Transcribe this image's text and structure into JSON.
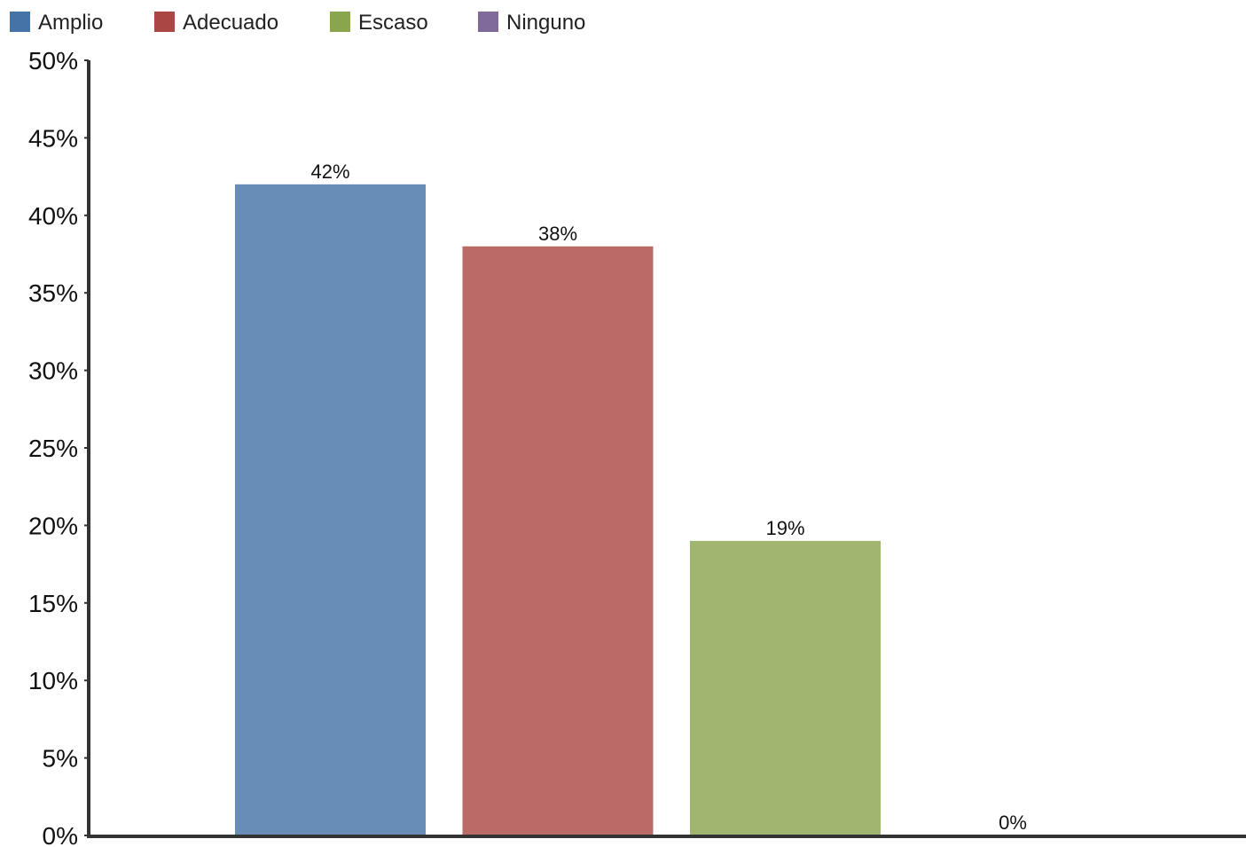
{
  "chart_data": {
    "type": "bar",
    "categories": [
      "Amplio",
      "Adecuado",
      "Escaso",
      "Ninguno"
    ],
    "values": [
      42,
      38,
      19,
      0
    ],
    "value_labels": [
      "42%",
      "38%",
      "19%",
      "0%"
    ],
    "unit": "%",
    "title": "",
    "xlabel": "",
    "ylabel": "",
    "ylim": [
      0,
      50
    ],
    "yticks": [
      0,
      5,
      10,
      15,
      20,
      25,
      30,
      35,
      40,
      45,
      50
    ],
    "ytick_labels": [
      "0%",
      "5%",
      "10%",
      "15%",
      "20%",
      "25%",
      "30%",
      "35%",
      "40%",
      "45%",
      "50%"
    ],
    "legend": {
      "position": "top-left",
      "entries": [
        {
          "name": "Amplio",
          "color": "#4572a7"
        },
        {
          "name": "Adecuado",
          "color": "#aa4643"
        },
        {
          "name": "Escaso",
          "color": "#89a54e"
        },
        {
          "name": "Ninguno",
          "color": "#80699b"
        }
      ]
    },
    "bar_colors": [
      "#688db6",
      "#ba6a67",
      "#a0b56f",
      "#80699b"
    ],
    "grid": false
  }
}
